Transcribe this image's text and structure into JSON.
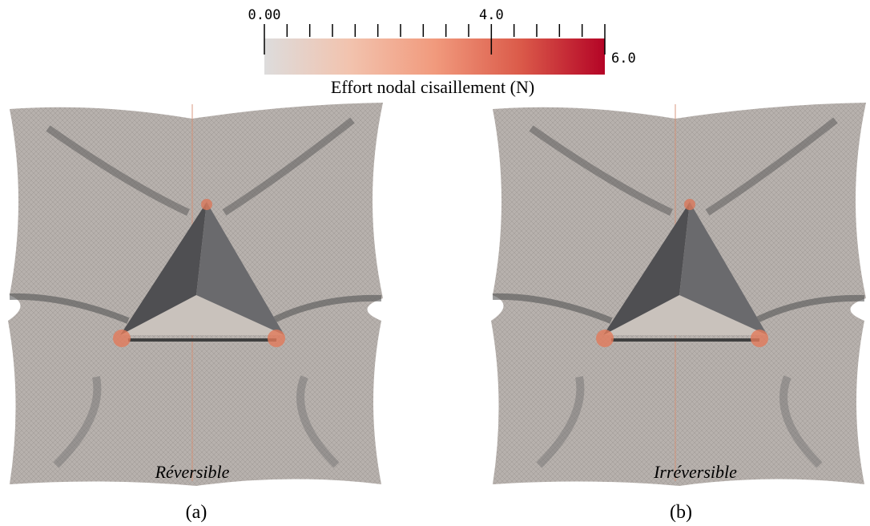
{
  "colorbar": {
    "title": "Effort nodal cisaillement (N)",
    "range": [
      0,
      6
    ],
    "ticks": [
      {
        "value": 0,
        "label": "0.00"
      },
      {
        "value": 4,
        "label": "4.0"
      },
      {
        "value": 6,
        "label": "6.0"
      }
    ],
    "minor_ticks": [
      0.4,
      0.8,
      1.2,
      1.6,
      2,
      2.4,
      2.8,
      3.2,
      3.6,
      4.4,
      4.8,
      5.2,
      5.6
    ],
    "colors": [
      "#dddcdc",
      "#f2c3ae",
      "#f19a7d",
      "#db5b4a",
      "#b40426"
    ]
  },
  "panels": [
    {
      "caption": "Réversible",
      "label": "(a)"
    },
    {
      "caption": "Irréversible",
      "label": "(b)"
    }
  ]
}
